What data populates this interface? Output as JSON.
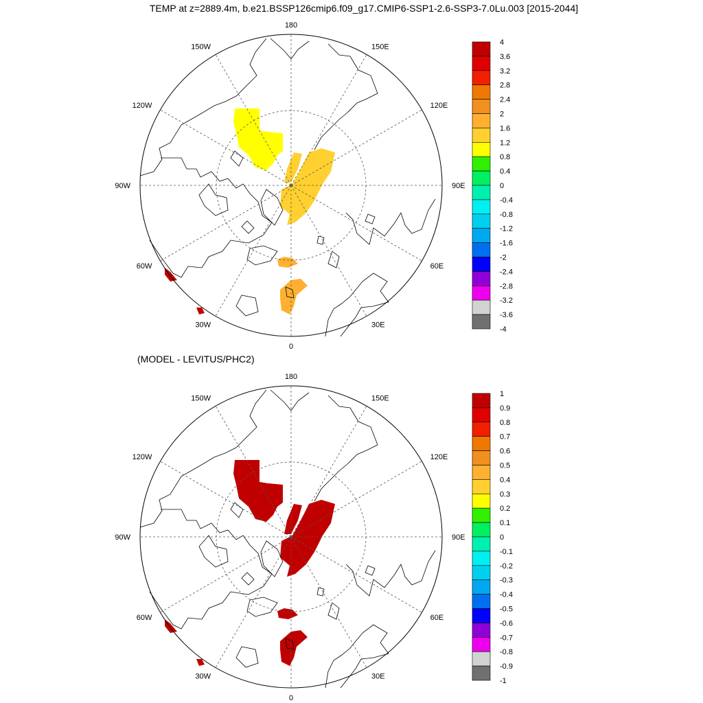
{
  "title": "TEMP at z=2889.4m, b.e21.BSSP126cmip6.f09_g17.CMIP6-SSP1-2.6-SSP3-7.0Lu.003 [2015-2044]",
  "subtitle": "(MODEL - LEVITUS/PHC2)",
  "lon_labels": [
    "180",
    "150E",
    "120E",
    "90E",
    "60E",
    "30E",
    "0",
    "30W",
    "60W",
    "90W",
    "120W",
    "150W"
  ],
  "colors": {
    "land_outline": "#000000",
    "grid": "#555555",
    "palette": [
      "#707070",
      "#d2d2d2",
      "#ee00ee",
      "#9000d8",
      "#0000ff",
      "#0070f0",
      "#00a8f0",
      "#00d0f0",
      "#00f0f0",
      "#00f0b0",
      "#00f060",
      "#30f000",
      "#ffff00",
      "#ffd030",
      "#ffb030",
      "#f09020",
      "#f07800",
      "#f02000",
      "#e00000",
      "#c00000"
    ]
  },
  "maps": [
    {
      "name": "temperature",
      "colorbar": {
        "labels": [
          "4",
          "3.6",
          "3.2",
          "2.8",
          "2.4",
          "2",
          "1.6",
          "1.2",
          "0.8",
          "0.4",
          "0",
          "-0.4",
          "-0.8",
          "-1.2",
          "-1.6",
          "-2",
          "-2.4",
          "-2.8",
          "-3.2",
          "-3.6",
          "-4"
        ]
      },
      "patches": [
        {
          "region": "canada-basin",
          "level": 1.0,
          "color": "#ffff00"
        },
        {
          "region": "eurasian-basin",
          "level": 1.4,
          "color": "#ffd030"
        },
        {
          "region": "lomonosov-spur",
          "level": 1.4,
          "color": "#ffd030"
        },
        {
          "region": "fram-strait",
          "level": 1.8,
          "color": "#ffb030"
        },
        {
          "region": "norwegian-sea",
          "level": 1.8,
          "color": "#ffb030"
        },
        {
          "region": "labrador-sea",
          "level": 3.8,
          "color": "#c00000"
        },
        {
          "region": "north-atlantic",
          "level": 3.8,
          "color": "#c00000"
        }
      ]
    },
    {
      "name": "difference",
      "colorbar": {
        "labels": [
          "1",
          "0.9",
          "0.8",
          "0.7",
          "0.6",
          "0.5",
          "0.4",
          "0.3",
          "0.2",
          "0.1",
          "0",
          "-0.1",
          "-0.2",
          "-0.3",
          "-0.4",
          "-0.5",
          "-0.6",
          "-0.7",
          "-0.8",
          "-0.9",
          "-1"
        ]
      },
      "patches": [
        {
          "region": "canada-basin",
          "level": 1.0,
          "color": "#c00000"
        },
        {
          "region": "eurasian-basin",
          "level": 1.0,
          "color": "#c00000"
        },
        {
          "region": "lomonosov-spur",
          "level": 1.0,
          "color": "#c00000"
        },
        {
          "region": "fram-strait",
          "level": 1.0,
          "color": "#c00000"
        },
        {
          "region": "norwegian-sea",
          "level": 1.0,
          "color": "#c00000"
        },
        {
          "region": "labrador-sea",
          "level": 1.0,
          "color": "#c00000"
        },
        {
          "region": "north-atlantic",
          "level": 1.0,
          "color": "#c00000"
        }
      ]
    }
  ]
}
